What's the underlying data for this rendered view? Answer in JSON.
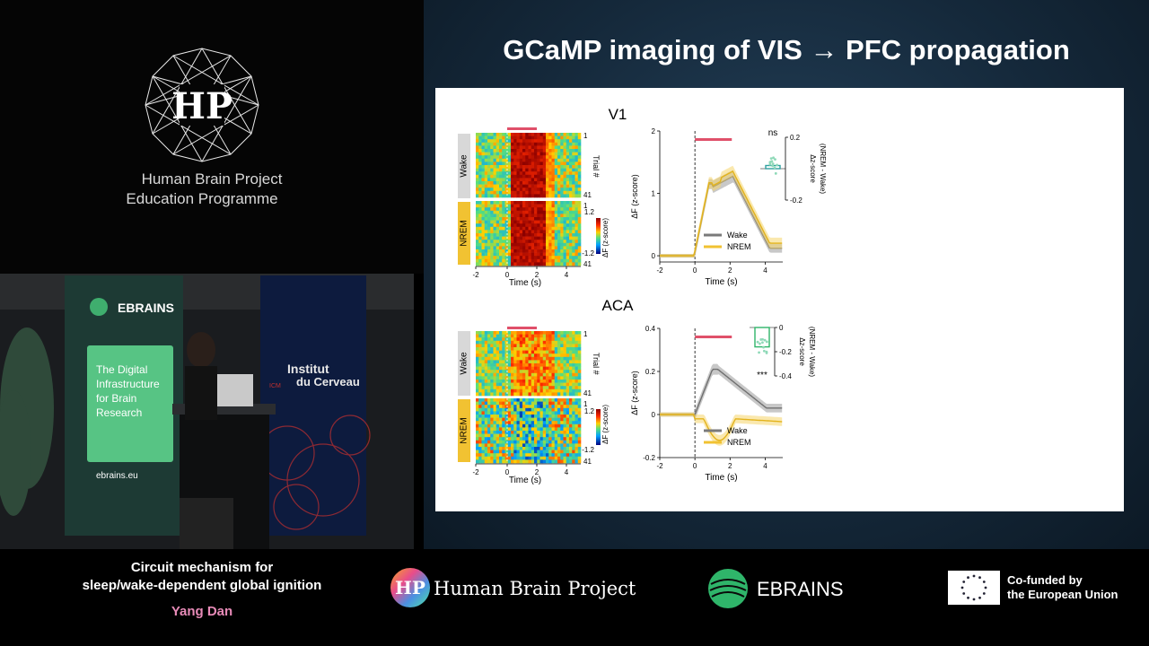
{
  "left_panel": {
    "logo_letters": "HP",
    "org_line1": "Human Brain Project",
    "org_line2": "Education Programme"
  },
  "video": {
    "banner_ebrains": "EBRAINS",
    "banner_digital": [
      "The Digital",
      "Infrastructure",
      "for Brain",
      "Research"
    ],
    "banner_url": "ebrains.eu",
    "institut_line1": "Institut",
    "institut_line2": "du Cerveau",
    "institut_prefix": "ICM"
  },
  "slide": {
    "title": "GCaMP imaging of VIS → PFC propagation",
    "panels": [
      {
        "region": "V1",
        "heatmap": {
          "state_labels": [
            "Wake",
            "NREM"
          ],
          "trial_top": "1",
          "trial_mid": "41",
          "trial_mid2": "1",
          "trial_bottom": "41",
          "trial_axis": "Trial #",
          "colorbar_max": "1.2",
          "colorbar_min": "-1.2",
          "colorbar_label": "ΔF (z-score)",
          "x_ticks": [
            "-2",
            "0",
            "2",
            "4"
          ],
          "x_label": "Time (s)"
        },
        "trace": {
          "y_ticks": [
            "2",
            "1",
            "0"
          ],
          "x_ticks": [
            "-2",
            "0",
            "2",
            "4"
          ],
          "x_label": "Time (s)",
          "y_label": "ΔF (z-score)",
          "legend": [
            "Wake",
            "NREM"
          ]
        },
        "inset": {
          "sig": "ns",
          "ticks": [
            "0.2",
            "-0.2"
          ],
          "label_1": "Δz-score",
          "label_2": "(NREM - Wake)"
        }
      },
      {
        "region": "ACA",
        "heatmap": {
          "state_labels": [
            "Wake",
            "NREM"
          ],
          "trial_top": "1",
          "trial_mid": "41",
          "trial_mid2": "1",
          "trial_bottom": "41",
          "trial_axis": "Trial #",
          "colorbar_max": "1.2",
          "colorbar_min": "-1.2",
          "colorbar_label": "ΔF (z-score)",
          "x_ticks": [
            "-2",
            "0",
            "2",
            "4"
          ],
          "x_label": "Time (s)"
        },
        "trace": {
          "y_ticks": [
            "0.4",
            "0.2",
            "0",
            "-0.2"
          ],
          "x_ticks": [
            "-2",
            "0",
            "2",
            "4"
          ],
          "x_label": "Time (s)",
          "y_label": "ΔF (z-score)",
          "legend": [
            "Wake",
            "NREM"
          ]
        },
        "inset": {
          "sig": "***",
          "ticks": [
            "0",
            "-0.2",
            "-0.4"
          ],
          "label_1": "Δz-score",
          "label_2": "(NREM - Wake)"
        }
      }
    ]
  },
  "bottom_bar": {
    "talk_title_line1": "Circuit mechanism for",
    "talk_title_line2": "sleep/wake-dependent global ignition",
    "speaker": "Yang Dan",
    "hbp_name": "Human Brain Project",
    "ebrains_name": "EBRAINS",
    "eu_line1": "Co-funded by",
    "eu_line2": "the European Union"
  },
  "colors": {
    "wake": "#8a8a8a",
    "nrem": "#f1c232",
    "stim_bar": "#e0506a",
    "speaker_name": "#e88bb8",
    "ebrains_green": "#2fb56a"
  }
}
